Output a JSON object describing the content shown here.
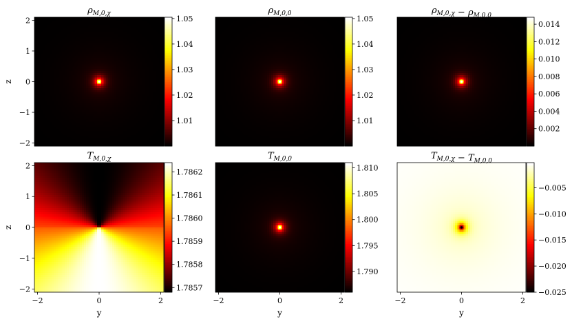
{
  "chart_data": [
    {
      "type": "heatmap",
      "title": {
        "base": "ρ",
        "sub": "M,0,χ"
      },
      "xlabel": "",
      "ylabel": "z",
      "xlim": [
        -2.1,
        2.1
      ],
      "ylim": [
        -2.1,
        2.1
      ],
      "yticks": [
        "−2",
        "−1",
        "0",
        "1",
        "2"
      ],
      "xticks": [],
      "colormap": "hot",
      "colorbar": {
        "min": 1.0,
        "max": 1.0505,
        "ticks": [
          "1.01",
          "1.02",
          "1.03",
          "1.04",
          "1.05"
        ],
        "tick_values": [
          1.01,
          1.02,
          1.03,
          1.04,
          1.05
        ]
      },
      "field": {
        "pattern": "central-peak",
        "peak_center": [
          0,
          0
        ]
      }
    },
    {
      "type": "heatmap",
      "title": {
        "base": "ρ",
        "sub": "M,0,0"
      },
      "xlabel": "",
      "ylabel": "",
      "xlim": [
        -2.1,
        2.1
      ],
      "ylim": [
        -2.1,
        2.1
      ],
      "yticks": [],
      "xticks": [],
      "colormap": "hot",
      "colorbar": {
        "min": 1.0,
        "max": 1.0505,
        "ticks": [
          "1.01",
          "1.02",
          "1.03",
          "1.04",
          "1.05"
        ],
        "tick_values": [
          1.01,
          1.02,
          1.03,
          1.04,
          1.05
        ]
      },
      "field": {
        "pattern": "central-peak",
        "peak_center": [
          0,
          0
        ]
      }
    },
    {
      "type": "heatmap",
      "title": {
        "parts": [
          {
            "base": "ρ",
            "sub": "M,0,χ"
          },
          {
            "op": " − "
          },
          {
            "base": "ρ",
            "sub": "M,0,0"
          }
        ]
      },
      "xlabel": "",
      "ylabel": "",
      "xlim": [
        -2.1,
        2.1
      ],
      "ylim": [
        -2.1,
        2.1
      ],
      "yticks": [],
      "xticks": [],
      "colormap": "hot",
      "colorbar": {
        "min": 0.0,
        "max": 0.0148,
        "ticks": [
          "0.002",
          "0.004",
          "0.006",
          "0.008",
          "0.010",
          "0.012",
          "0.014"
        ],
        "tick_values": [
          0.002,
          0.004,
          0.006,
          0.008,
          0.01,
          0.012,
          0.014
        ]
      },
      "field": {
        "pattern": "central-peak",
        "peak_center": [
          0,
          0
        ]
      }
    },
    {
      "type": "heatmap",
      "title": {
        "base": "T",
        "sub": "M,0,χ"
      },
      "xlabel": "y",
      "ylabel": "z",
      "xlim": [
        -2.1,
        2.1
      ],
      "ylim": [
        -2.1,
        2.1
      ],
      "yticks": [
        "−2",
        "−1",
        "0",
        "1",
        "2"
      ],
      "xticks": [
        "−2",
        "0",
        "2"
      ],
      "colormap": "hot",
      "colorbar": {
        "min": 1.78568,
        "max": 1.78624,
        "ticks": [
          "1.7857",
          "1.7858",
          "1.7859",
          "1.7860",
          "1.7861",
          "1.7862"
        ],
        "tick_values": [
          1.7857,
          1.7858,
          1.7859,
          1.786,
          1.7861,
          1.7862
        ]
      },
      "field": {
        "pattern": "dipole-angular",
        "peak_center": [
          0,
          0
        ]
      }
    },
    {
      "type": "heatmap",
      "title": {
        "base": "T",
        "sub": "M,0,0"
      },
      "xlabel": "y",
      "ylabel": "",
      "xlim": [
        -2.1,
        2.1
      ],
      "ylim": [
        -2.1,
        2.1
      ],
      "yticks": [],
      "xticks": [
        "−2",
        "0",
        "2"
      ],
      "colormap": "hot",
      "colorbar": {
        "min": 1.786,
        "max": 1.811,
        "ticks": [
          "1.790",
          "1.795",
          "1.800",
          "1.805",
          "1.810"
        ],
        "tick_values": [
          1.79,
          1.795,
          1.8,
          1.805,
          1.81
        ]
      },
      "field": {
        "pattern": "central-peak",
        "peak_center": [
          0,
          0
        ]
      }
    },
    {
      "type": "heatmap",
      "title": {
        "parts": [
          {
            "base": "T",
            "sub": "M,0,χ"
          },
          {
            "op": " − "
          },
          {
            "base": "T",
            "sub": "M,0,0"
          }
        ]
      },
      "xlabel": "y",
      "ylabel": "",
      "xlim": [
        -2.1,
        2.1
      ],
      "ylim": [
        -2.1,
        2.1
      ],
      "yticks": [],
      "xticks": [
        "−2",
        "0",
        "2"
      ],
      "colormap": "hot",
      "colorbar": {
        "min": -0.025,
        "max": -0.0002,
        "ticks": [
          "−0.025",
          "−0.020",
          "−0.015",
          "−0.010",
          "−0.005"
        ],
        "tick_values": [
          -0.025,
          -0.02,
          -0.015,
          -0.01,
          -0.005
        ]
      },
      "field": {
        "pattern": "central-dip",
        "peak_center": [
          0,
          0
        ]
      }
    }
  ]
}
